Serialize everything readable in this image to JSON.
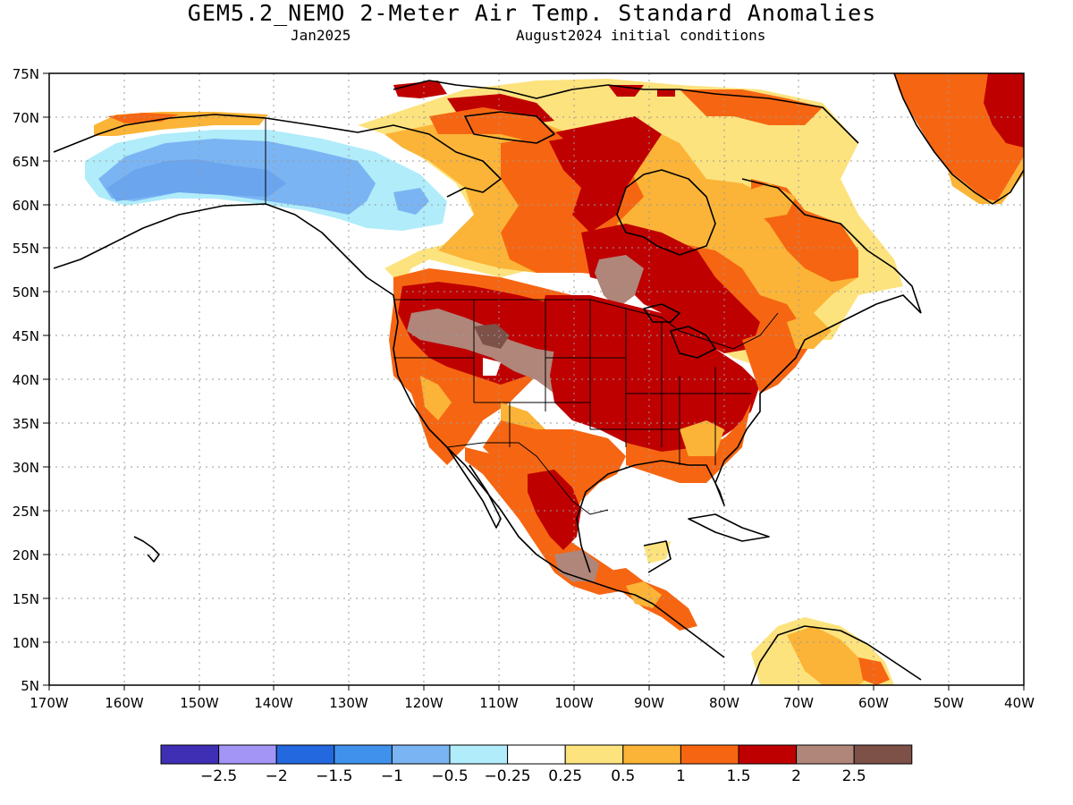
{
  "header": {
    "title": "GEM5.2_NEMO 2-Meter Air Temp. Standard Anomalies",
    "valid": "Jan2025",
    "init": "August2024 initial conditions"
  },
  "axes": {
    "lat_labels": [
      "75N",
      "70N",
      "65N",
      "60N",
      "55N",
      "50N",
      "45N",
      "40N",
      "35N",
      "30N",
      "25N",
      "20N",
      "15N",
      "10N",
      "5N"
    ],
    "lon_labels": [
      "170W",
      "160W",
      "150W",
      "140W",
      "130W",
      "120W",
      "110W",
      "100W",
      "90W",
      "80W",
      "70W",
      "60W",
      "50W",
      "40W"
    ]
  },
  "colorbar": {
    "colors": [
      "#3f2fb5",
      "#a395f5",
      "#2468e0",
      "#3f91ec",
      "#7bb4f3",
      "#b0ecfa",
      "#ffffff",
      "#fde37e",
      "#fbb437",
      "#f66612",
      "#bf0000",
      "#b0857a",
      "#7d5048"
    ],
    "labels": [
      "−2.5",
      "−2",
      "−1.5",
      "−1",
      "−0.5",
      "−0.25",
      "0.25",
      "0.5",
      "1",
      "1.5",
      "2",
      "2.5"
    ]
  },
  "map": {
    "extent": {
      "lon": [
        -170,
        -40
      ],
      "lat": [
        5,
        75
      ]
    },
    "region": "North America",
    "colors": {
      "ocean": "#ffffff",
      "land_outline": "#000000",
      "grid": "#9a9a9a"
    }
  }
}
